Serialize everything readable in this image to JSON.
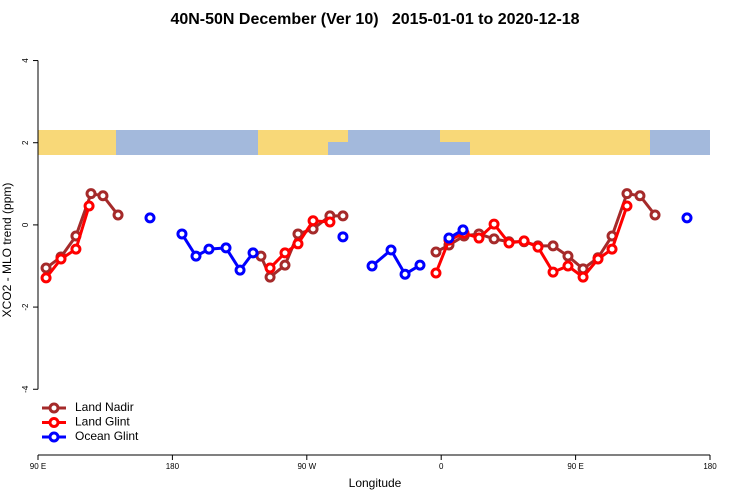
{
  "chart_data": {
    "type": "line",
    "title": "40N-50N December (Ver 10)   2015-01-01 to 2020-12-18",
    "x_label": "Longitude",
    "y_label": "XCO2 - MLO trend (ppm)",
    "xlim": [
      90,
      540
    ],
    "ylim": [
      -5.6,
      4.5
    ],
    "xticks": [
      {
        "value": 90,
        "label": "90 E"
      },
      180,
      {
        "value": 270,
        "label": "90 W"
      },
      {
        "value": 360,
        "label": "0"
      },
      {
        "value": 450,
        "label": "90 E"
      },
      {
        "value": 540,
        "label": "180"
      }
    ],
    "yticks": [
      -4,
      -2,
      0,
      2,
      4
    ],
    "legend": "bottom-left",
    "series": [
      {
        "name": "Land Nadir",
        "color": "#a52a2a",
        "x": [
          95.4,
          105.4,
          115.4,
          125.5,
          133.5,
          143.6,
          null,
          239.3,
          245.4,
          255.4,
          264.1,
          274.2,
          285.5,
          294.2,
          null,
          356.5,
          365.2,
          375.3,
          385.3,
          395.4,
          405.4,
          415.5,
          424.8,
          434.9,
          444.9,
          455.0,
          465.0,
          474.4,
          484.4,
          493.1,
          503.2
        ],
        "values": [
          -1.05,
          -0.78,
          -0.27,
          0.76,
          0.71,
          0.24,
          null,
          -0.76,
          -1.27,
          -0.98,
          -0.22,
          -0.1,
          0.22,
          0.22,
          null,
          -0.66,
          -0.49,
          -0.27,
          -0.22,
          -0.34,
          -0.41,
          -0.41,
          -0.51,
          -0.51,
          -0.76,
          -1.07,
          -0.8,
          -0.27,
          0.76,
          0.71,
          0.24
        ]
      },
      {
        "name": "Land Glint",
        "color": "#ff0000",
        "x": [
          95.4,
          105.4,
          115.4,
          124.2,
          null,
          245.4,
          255.4,
          264.1,
          274.2,
          285.5,
          null,
          356.5,
          365.2,
          375.3,
          385.3,
          395.4,
          405.4,
          415.5,
          424.8,
          434.9,
          444.9,
          455.0,
          465.0,
          474.4,
          484.4
        ],
        "values": [
          -1.29,
          -0.83,
          -0.59,
          0.46,
          null,
          -1.05,
          -0.68,
          -0.46,
          0.1,
          0.07,
          null,
          -1.17,
          -0.37,
          -0.2,
          -0.32,
          0.02,
          -0.44,
          -0.39,
          -0.54,
          -1.15,
          -1.0,
          -1.27,
          -0.83,
          -0.59,
          0.46
        ]
      },
      {
        "name": "Ocean Glint",
        "color": "#0000ff",
        "x": [
          165.0,
          null,
          186.4,
          195.8,
          204.5,
          215.9,
          225.3,
          234.0,
          null,
          294.2,
          null,
          313.7,
          326.4,
          335.8,
          345.8,
          null,
          365.2,
          374.6,
          null,
          524.6
        ],
        "values": [
          0.17,
          null,
          -0.22,
          -0.76,
          -0.59,
          -0.56,
          -1.1,
          -0.68,
          null,
          -0.29,
          null,
          -1.0,
          -0.61,
          -1.2,
          -0.98,
          null,
          -0.32,
          -0.12,
          null,
          0.17
        ]
      }
    ]
  }
}
